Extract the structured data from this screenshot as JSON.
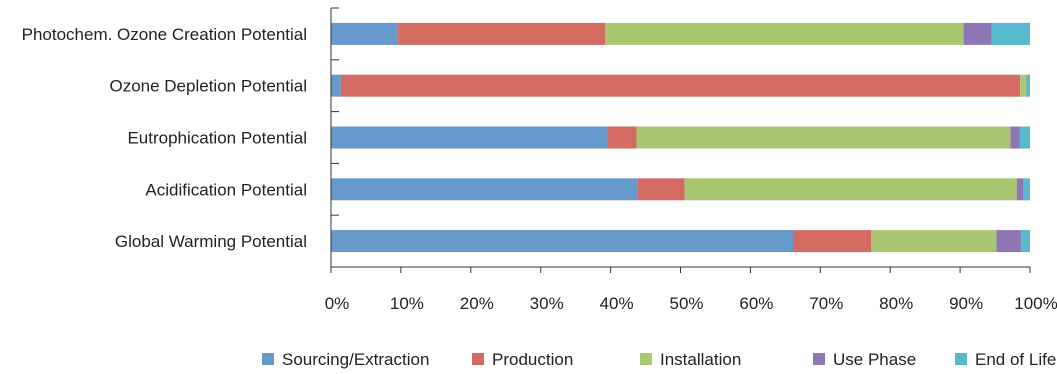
{
  "chart_data": {
    "type": "bar",
    "orientation": "horizontal",
    "stacked": true,
    "categories": [
      "Photochem. Ozone Creation Potential",
      "Ozone Depletion Potential",
      "Eutrophication Potential",
      "Acidification Potential",
      "Global Warming Potential"
    ],
    "series": [
      {
        "name": "Sourcing/Extraction",
        "color": "#6699CC",
        "values": [
          9.6,
          1.4,
          39.5,
          43.8,
          66.1
        ]
      },
      {
        "name": "Production",
        "color": "#D36B63",
        "values": [
          29.6,
          97.2,
          4.2,
          6.8,
          11.2
        ]
      },
      {
        "name": "Installation",
        "color": "#A9C671",
        "values": [
          51.3,
          0.9,
          53.5,
          47.5,
          17.9
        ]
      },
      {
        "name": "Use Phase",
        "color": "#8E77B4",
        "values": [
          4.0,
          0.0,
          1.3,
          1.0,
          3.5
        ]
      },
      {
        "name": "End of Life",
        "color": "#56B9CE",
        "values": [
          5.5,
          0.5,
          1.5,
          0.9,
          1.3
        ]
      }
    ],
    "xlim": [
      0,
      100
    ],
    "xticks": [
      "0%",
      "10%",
      "20%",
      "30%",
      "40%",
      "50%",
      "60%",
      "70%",
      "80%",
      "90%",
      "100%"
    ],
    "grid": false,
    "legend": "bottom"
  }
}
